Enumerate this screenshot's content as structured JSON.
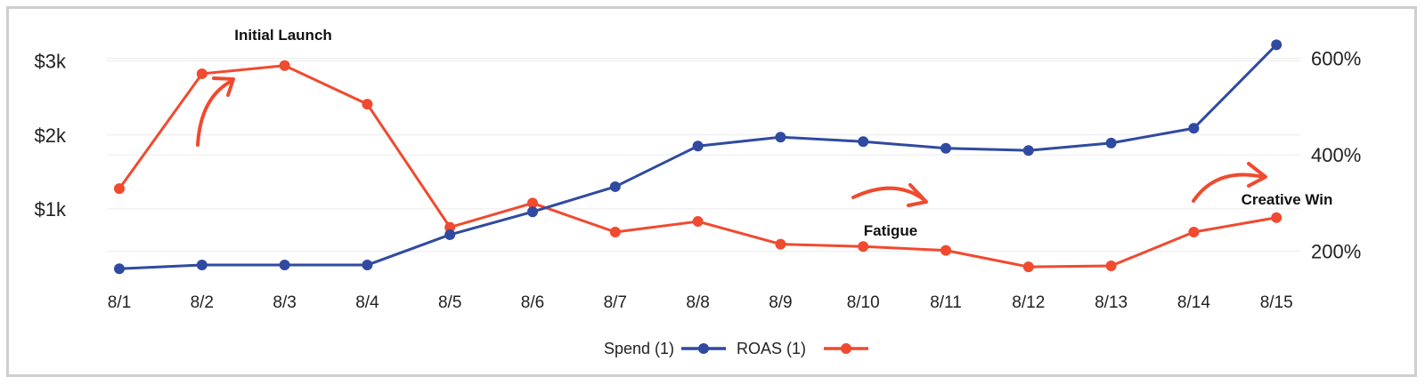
{
  "chart_data": {
    "type": "line",
    "categories": [
      "8/1",
      "8/2",
      "8/3",
      "8/4",
      "8/5",
      "8/6",
      "8/7",
      "8/8",
      "8/9",
      "8/10",
      "8/11",
      "8/12",
      "8/13",
      "8/14",
      "8/15"
    ],
    "y_left": {
      "ticks": [
        "$1k",
        "$2k",
        "$3k"
      ],
      "tick_values": [
        1000,
        2000,
        3000
      ],
      "range": [
        0,
        3200
      ]
    },
    "y_right": {
      "ticks": [
        "200%",
        "400%",
        "600%"
      ],
      "tick_values": [
        200,
        400,
        600
      ],
      "range": [
        135,
        625
      ]
    },
    "series": [
      {
        "name": "Spend (1)",
        "axis": "left",
        "color": "#2f4aa0",
        "values": [
          190,
          240,
          240,
          240,
          650,
          960,
          1300,
          1850,
          1970,
          1910,
          1820,
          1790,
          1890,
          2090,
          3220
        ]
      },
      {
        "name": "ROAS (1)",
        "axis": "right",
        "color": "#f04a2f",
        "values": [
          330,
          568,
          585,
          505,
          250,
          300,
          240,
          262,
          215,
          210,
          202,
          168,
          170,
          240,
          270
        ]
      }
    ],
    "annotations": [
      {
        "text": "Initial Launch"
      },
      {
        "text": "Fatigue"
      },
      {
        "text": "Creative Win"
      }
    ],
    "grid": true,
    "legend_position": "bottom"
  }
}
